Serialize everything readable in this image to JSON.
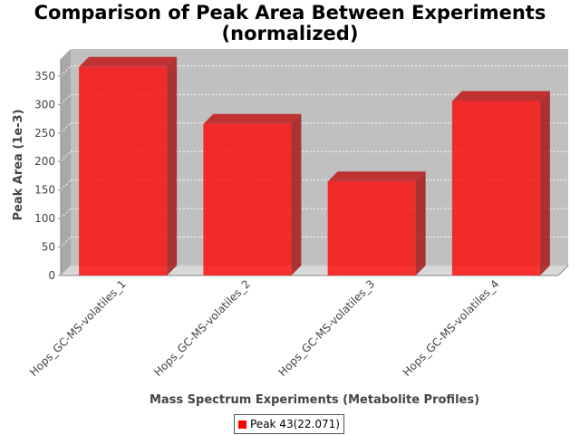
{
  "chart_data": {
    "type": "bar",
    "title_line1": "Comparison of Peak Area Between Experiments",
    "title_line2": "(normalized)",
    "xlabel": "Mass Spectrum Experiments (Metabolite Profiles)",
    "ylabel": "Peak Area (1e-3)",
    "categories": [
      "Hops_GC-MS-volatiles_1",
      "Hops_GC-MS-volatiles_2",
      "Hops_GC-MS-volatiles_3",
      "Hops_GC-MS-volatiles_4"
    ],
    "series": [
      {
        "name": "Peak 43(22.071)",
        "values": [
          366,
          266,
          165,
          306
        ],
        "color": "#ff0000"
      }
    ],
    "ylim": [
      0,
      380
    ],
    "yticks": [
      0,
      50,
      100,
      150,
      200,
      250,
      300,
      350
    ],
    "grid": true,
    "three_d": true,
    "legend_position": "bottom"
  }
}
